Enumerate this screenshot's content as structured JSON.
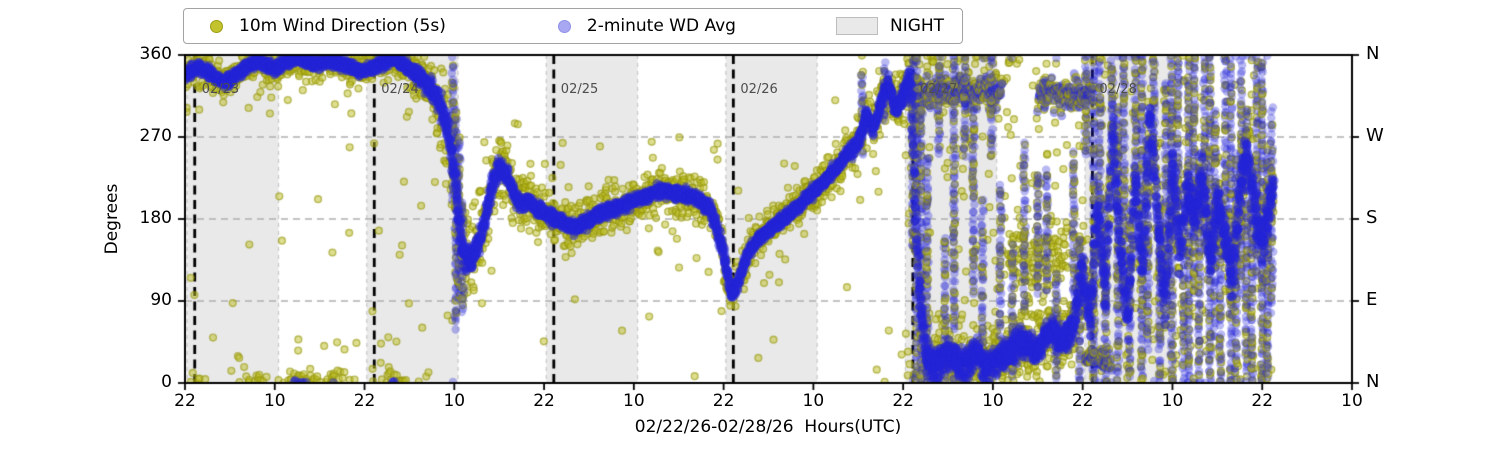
{
  "legend": {
    "items": [
      {
        "label": "10m Wind Direction (5s)",
        "marker": "dot",
        "color": "#c3c32e",
        "edge": "#9c9c14"
      },
      {
        "label": "2-minute WD Avg",
        "marker": "dot",
        "color": "#a8a8f2",
        "edge": "#8f8fe8"
      },
      {
        "label": "NIGHT",
        "marker": "patch",
        "color": "#e9e9e9"
      }
    ]
  },
  "axes": {
    "ylabel": "Degrees",
    "xlabel": "02/22/26-02/28/26  Hours(UTC)",
    "y_ticks": [
      "360",
      "270",
      "180",
      "90",
      "0"
    ],
    "y_tick_values": [
      360,
      270,
      180,
      90,
      0
    ],
    "right_ticks": [
      "N",
      "W",
      "S",
      "E",
      "N"
    ],
    "x_ticks": [
      "22",
      "10",
      "22",
      "10",
      "22",
      "10",
      "22",
      "10",
      "22",
      "10",
      "22",
      "10",
      "22",
      "10"
    ],
    "x_tick_hours": [
      0,
      12,
      24,
      36,
      48,
      60,
      72,
      84,
      96,
      108,
      120,
      132,
      144,
      156
    ]
  },
  "day_lines": [
    {
      "t": 1.3,
      "label": "02/23"
    },
    {
      "t": 25.3,
      "label": "02/24"
    },
    {
      "t": 49.3,
      "label": "02/25"
    },
    {
      "t": 73.3,
      "label": "02/26"
    },
    {
      "t": 97.3,
      "label": "02/27"
    },
    {
      "t": 121.3,
      "label": "02/28"
    }
  ],
  "colors": {
    "samples_fill": "#bcbd22",
    "samples_edge": "#96960c",
    "avg_fill": "#1a1ad2",
    "night_fill": "#e9e9e9",
    "night_edge": "#c8c8c8",
    "grid": "#b0b0b0",
    "day_line": "#000000",
    "date_label": "#4d4d4d"
  },
  "chart_data": {
    "type": "scatter",
    "xlabel": "02/22/26-02/28/26  Hours(UTC)",
    "ylabel": "Degrees",
    "x_unit": "hours since 02/22 22:00 UTC",
    "x_range_hours": [
      0,
      156
    ],
    "ylim": [
      0,
      360
    ],
    "grid_deg": [
      90,
      180,
      270
    ],
    "legend_position": "top",
    "layout": {
      "plot_left": 185,
      "plot_right": 1352,
      "plot_top": 55,
      "plot_bottom": 383
    },
    "night_bands_hours": [
      [
        0.3,
        12.5
      ],
      [
        24.3,
        36.5
      ],
      [
        48.3,
        60.5
      ],
      [
        72.3,
        84.5
      ],
      [
        96.3,
        108.5
      ],
      [
        120.3,
        132.5
      ]
    ],
    "night_edge_only_hours": [
      144.3
    ],
    "series": [
      {
        "name": "2-minute WD Avg",
        "role": "average",
        "points_hourly": [
          [
            0,
            338
          ],
          [
            1,
            344
          ],
          [
            2,
            347
          ],
          [
            3,
            342
          ],
          [
            4,
            336
          ],
          [
            5,
            330
          ],
          [
            6,
            333
          ],
          [
            7,
            340
          ],
          [
            8,
            346
          ],
          [
            9,
            350
          ],
          [
            10,
            352
          ],
          [
            11,
            348
          ],
          [
            12,
            345
          ],
          [
            13,
            350
          ],
          [
            14,
            354
          ],
          [
            15,
            357
          ],
          [
            16,
            355
          ],
          [
            17,
            352
          ],
          [
            18,
            350
          ],
          [
            19,
            353
          ],
          [
            20,
            355
          ],
          [
            21,
            350
          ],
          [
            22,
            347
          ],
          [
            23,
            344
          ],
          [
            24,
            342
          ],
          [
            25,
            346
          ],
          [
            26,
            350
          ],
          [
            27,
            353
          ],
          [
            28,
            355
          ],
          [
            29,
            350
          ],
          [
            30,
            344
          ],
          [
            31,
            338
          ],
          [
            32,
            330
          ],
          [
            33,
            322
          ],
          [
            34,
            308
          ],
          [
            35,
            282
          ],
          [
            36,
            230
          ],
          [
            37,
            150
          ],
          [
            38,
            132
          ],
          [
            39,
            148
          ],
          [
            40,
            175
          ],
          [
            41,
            215
          ],
          [
            42,
            238
          ],
          [
            43,
            228
          ],
          [
            44,
            208
          ],
          [
            45,
            196
          ],
          [
            46,
            200
          ],
          [
            47,
            192
          ],
          [
            48,
            186
          ],
          [
            49,
            182
          ],
          [
            50,
            179
          ],
          [
            51,
            174
          ],
          [
            52,
            171
          ],
          [
            53,
            174
          ],
          [
            54,
            178
          ],
          [
            55,
            184
          ],
          [
            56,
            188
          ],
          [
            57,
            190
          ],
          [
            58,
            193
          ],
          [
            59,
            197
          ],
          [
            60,
            201
          ],
          [
            61,
            204
          ],
          [
            62,
            206
          ],
          [
            63,
            210
          ],
          [
            64,
            212
          ],
          [
            65,
            209
          ],
          [
            66,
            207
          ],
          [
            67,
            206
          ],
          [
            68,
            204
          ],
          [
            69,
            199
          ],
          [
            70,
            193
          ],
          [
            71,
            172
          ],
          [
            72,
            142
          ],
          [
            73,
            96
          ],
          [
            74,
            112
          ],
          [
            75,
            138
          ],
          [
            76,
            152
          ],
          [
            77,
            160
          ],
          [
            78,
            168
          ],
          [
            79,
            174
          ],
          [
            80,
            180
          ],
          [
            81,
            187
          ],
          [
            82,
            194
          ],
          [
            83,
            202
          ],
          [
            84,
            210
          ],
          [
            85,
            218
          ],
          [
            86,
            226
          ],
          [
            87,
            236
          ],
          [
            88,
            246
          ],
          [
            89,
            255
          ],
          [
            90,
            263
          ],
          [
            91,
            295
          ],
          [
            92,
            278
          ],
          [
            93,
            308
          ],
          [
            94,
            330
          ],
          [
            95,
            298
          ],
          [
            96,
            318
          ],
          [
            97,
            336
          ],
          [
            98,
            120
          ],
          [
            99,
            30
          ],
          [
            100,
            18
          ],
          [
            101,
            26
          ],
          [
            102,
            34
          ],
          [
            103,
            22
          ],
          [
            104,
            18
          ],
          [
            105,
            28
          ],
          [
            106,
            34
          ],
          [
            107,
            16
          ],
          [
            108,
            24
          ],
          [
            109,
            28
          ],
          [
            110,
            32
          ],
          [
            111,
            38
          ],
          [
            112,
            46
          ],
          [
            113,
            40
          ],
          [
            114,
            36
          ],
          [
            115,
            52
          ],
          [
            116,
            58
          ],
          [
            117,
            44
          ],
          [
            118,
            52
          ],
          [
            119,
            70
          ],
          [
            120,
            130
          ],
          [
            121,
            60
          ],
          [
            122,
            200
          ],
          [
            123,
            90
          ],
          [
            124,
            280
          ],
          [
            125,
            150
          ],
          [
            126,
            60
          ],
          [
            127,
            230
          ],
          [
            128,
            120
          ],
          [
            129,
            300
          ],
          [
            130,
            180
          ],
          [
            131,
            80
          ],
          [
            132,
            250
          ],
          [
            133,
            140
          ],
          [
            134,
            220
          ],
          [
            135,
            180
          ],
          [
            136,
            230
          ],
          [
            137,
            130
          ],
          [
            138,
            200
          ],
          [
            139,
            160
          ],
          [
            140,
            110
          ],
          [
            141,
            210
          ],
          [
            142,
            255
          ],
          [
            143,
            190
          ],
          [
            144,
            150
          ],
          [
            145,
            200
          ],
          [
            145.5,
            220
          ]
        ]
      },
      {
        "name": "10m Wind Direction (5s)",
        "role": "samples",
        "spread_hourly": [
          [
            0,
            26
          ],
          [
            10,
            24
          ],
          [
            20,
            26
          ],
          [
            30,
            30
          ],
          [
            34,
            60
          ],
          [
            36,
            85
          ],
          [
            38,
            75
          ],
          [
            40,
            60
          ],
          [
            42,
            50
          ],
          [
            44,
            45
          ],
          [
            46,
            40
          ],
          [
            48,
            38
          ],
          [
            50,
            34
          ],
          [
            55,
            36
          ],
          [
            60,
            34
          ],
          [
            65,
            32
          ],
          [
            70,
            34
          ],
          [
            72,
            40
          ],
          [
            73,
            30
          ],
          [
            74,
            34
          ],
          [
            76,
            30
          ],
          [
            80,
            30
          ],
          [
            84,
            32
          ],
          [
            88,
            36
          ],
          [
            92,
            40
          ],
          [
            96,
            45
          ],
          [
            98,
            80
          ],
          [
            100,
            60
          ],
          [
            104,
            65
          ],
          [
            108,
            60
          ],
          [
            112,
            55
          ],
          [
            116,
            55
          ],
          [
            119,
            70
          ],
          [
            121,
            85
          ],
          [
            124,
            90
          ],
          [
            128,
            90
          ],
          [
            132,
            90
          ],
          [
            136,
            90
          ],
          [
            140,
            90
          ],
          [
            144,
            85
          ],
          [
            145.5,
            70
          ]
        ],
        "uniform_background": [
          [
            0,
            36,
            0.9
          ],
          [
            36,
            96,
            0.35
          ],
          [
            96,
            146,
            5.5
          ]
        ]
      }
    ],
    "gust_streaks": [
      [
        35.8,
        200,
        360
      ],
      [
        36.2,
        60,
        300
      ],
      [
        36.6,
        90,
        270
      ],
      [
        37.1,
        80,
        200
      ],
      [
        90.5,
        250,
        340
      ],
      [
        93.5,
        290,
        350
      ],
      [
        97.3,
        150,
        360
      ],
      [
        97.8,
        0,
        360
      ],
      [
        98.4,
        0,
        300
      ],
      [
        99.2,
        0,
        250
      ],
      [
        100.8,
        250,
        360
      ],
      [
        101.6,
        0,
        160
      ],
      [
        102.8,
        60,
        360
      ],
      [
        104.2,
        250,
        360
      ],
      [
        105.4,
        100,
        300
      ],
      [
        106.6,
        0,
        200
      ],
      [
        107.8,
        250,
        360
      ],
      [
        109.0,
        50,
        220
      ],
      [
        110.6,
        0,
        150
      ],
      [
        112.2,
        80,
        260
      ],
      [
        114.0,
        100,
        230
      ],
      [
        115.2,
        100,
        235
      ],
      [
        116.5,
        0,
        120
      ],
      [
        118.8,
        60,
        250
      ],
      [
        119.6,
        0,
        160
      ],
      [
        120.4,
        250,
        360
      ],
      [
        121.5,
        0,
        360
      ],
      [
        122.3,
        150,
        360
      ],
      [
        123.1,
        0,
        200
      ],
      [
        123.9,
        230,
        360
      ],
      [
        124.7,
        0,
        300
      ],
      [
        125.5,
        120,
        360
      ],
      [
        126.3,
        0,
        180
      ],
      [
        127.1,
        200,
        360
      ],
      [
        127.9,
        0,
        360
      ],
      [
        128.7,
        40,
        250
      ],
      [
        129.5,
        250,
        360
      ],
      [
        130.3,
        0,
        200
      ],
      [
        131.1,
        100,
        330
      ],
      [
        131.9,
        0,
        360
      ],
      [
        132.7,
        180,
        360
      ],
      [
        133.5,
        0,
        150
      ],
      [
        134.2,
        0,
        360
      ],
      [
        134.9,
        100,
        360
      ],
      [
        135.6,
        0,
        250
      ],
      [
        136.3,
        150,
        360
      ],
      [
        137.0,
        0,
        360
      ],
      [
        137.7,
        50,
        300
      ],
      [
        138.4,
        0,
        200
      ],
      [
        139.1,
        150,
        360
      ],
      [
        139.8,
        0,
        360
      ],
      [
        140.5,
        0,
        250
      ],
      [
        141.2,
        100,
        360
      ],
      [
        141.9,
        0,
        300
      ],
      [
        142.6,
        0,
        200
      ],
      [
        143.3,
        120,
        360
      ],
      [
        144.0,
        0,
        360
      ],
      [
        144.7,
        0,
        250
      ],
      [
        145.3,
        80,
        300
      ]
    ],
    "secondary_clusters": [
      [
        97.5,
        109.2,
        318,
        26,
        "b"
      ],
      [
        114.0,
        121.3,
        318,
        26,
        "b"
      ],
      [
        120.3,
        123.8,
        25,
        16,
        "b"
      ],
      [
        110.0,
        118.0,
        140,
        70,
        "y"
      ]
    ]
  }
}
